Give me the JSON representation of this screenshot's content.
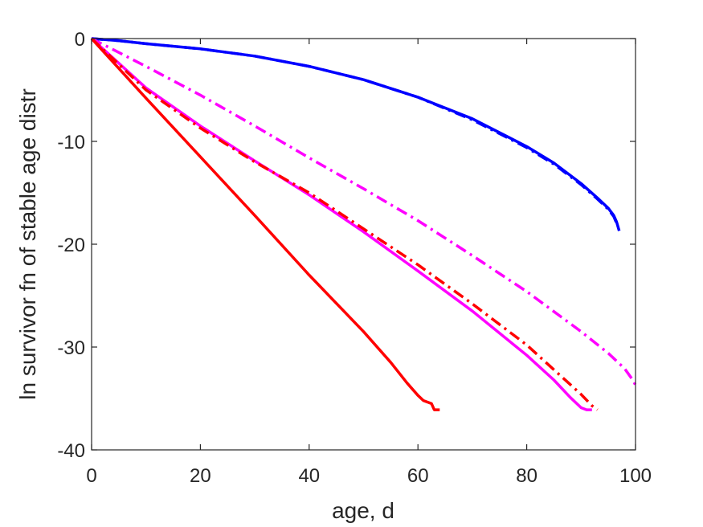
{
  "chart_data": {
    "type": "line",
    "title": "",
    "xlabel": "age, d",
    "ylabel": "ln survivor fn of stable age distr",
    "xlim": [
      0,
      100
    ],
    "ylim": [
      -40,
      0
    ],
    "xticks": [
      0,
      20,
      40,
      60,
      80,
      100
    ],
    "yticks": [
      0,
      -10,
      -20,
      -30,
      -40
    ],
    "grid": false,
    "legend": "none",
    "series": [
      {
        "color": "#0000ff",
        "style": "solid",
        "x": [
          0,
          5,
          10,
          20,
          30,
          40,
          50,
          60,
          70,
          80,
          85,
          90,
          93,
          95,
          96,
          96.5,
          97
        ],
        "y": [
          0,
          -0.2,
          -0.5,
          -1.0,
          -1.7,
          -2.7,
          -4.0,
          -5.7,
          -7.8,
          -10.5,
          -12.1,
          -14.1,
          -15.5,
          -16.5,
          -17.2,
          -17.8,
          -18.7
        ]
      },
      {
        "color": "#0000ff",
        "style": "dashdot",
        "x": [
          0,
          5,
          10,
          20,
          30,
          40,
          50,
          60,
          70,
          80,
          85,
          90,
          93,
          95,
          96,
          96.8
        ],
        "y": [
          0,
          -0.2,
          -0.5,
          -1.0,
          -1.7,
          -2.7,
          -4.0,
          -5.7,
          -7.9,
          -10.6,
          -12.2,
          -14.2,
          -15.6,
          -16.6,
          -17.3,
          -18.3
        ]
      },
      {
        "color": "#ff00ff",
        "style": "dashdot",
        "x": [
          0,
          10,
          20,
          30,
          40,
          50,
          60,
          70,
          80,
          90,
          95,
          98,
          99.5,
          100
        ],
        "y": [
          0,
          -2.7,
          -5.5,
          -8.5,
          -11.6,
          -14.6,
          -17.7,
          -21.1,
          -24.6,
          -28.5,
          -30.6,
          -32.1,
          -33.2,
          -33.7
        ]
      },
      {
        "color": "#ff00ff",
        "style": "solid",
        "x": [
          0,
          10,
          20,
          30,
          40,
          50,
          60,
          70,
          80,
          85,
          88,
          90,
          91,
          92
        ],
        "y": [
          0,
          -4.8,
          -8.5,
          -11.9,
          -15.2,
          -18.8,
          -22.6,
          -26.5,
          -30.8,
          -33.2,
          -34.9,
          -35.9,
          -36.1,
          -36.1
        ]
      },
      {
        "color": "#ff0000",
        "style": "dashdot",
        "x": [
          0,
          10,
          20,
          30,
          40,
          50,
          60,
          70,
          80,
          85,
          90,
          92,
          93
        ],
        "y": [
          0,
          -5.0,
          -8.7,
          -12.0,
          -15.0,
          -18.5,
          -22.0,
          -25.8,
          -29.8,
          -32.2,
          -34.6,
          -35.7,
          -36.1
        ]
      },
      {
        "color": "#ff0000",
        "style": "solid",
        "x": [
          0,
          10,
          20,
          30,
          40,
          50,
          55,
          58,
          60,
          61,
          62,
          62.5,
          63,
          64
        ],
        "y": [
          0,
          -5.8,
          -11.5,
          -17.2,
          -23.0,
          -28.5,
          -31.5,
          -33.5,
          -34.7,
          -35.2,
          -35.4,
          -35.5,
          -36.1,
          -36.1
        ]
      }
    ]
  }
}
